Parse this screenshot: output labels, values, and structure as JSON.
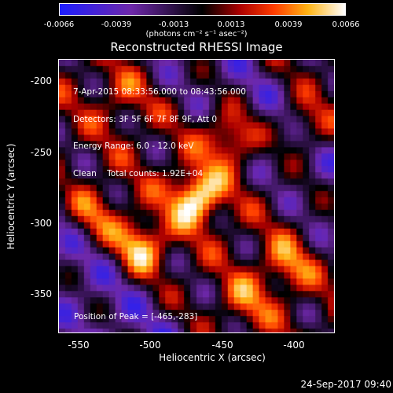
{
  "colorbar": {
    "ticks": [
      "-0.0066",
      "-0.0039",
      "-0.0013",
      "0.0013",
      "0.0039",
      "0.0066"
    ],
    "units": "(photons cm⁻² s⁻¹ asec⁻²)"
  },
  "chart_data": {
    "type": "heatmap",
    "title": "Reconstructed RHESSI Image",
    "xlabel": "Heliocentric X (arcsec)",
    "ylabel": "Heliocentric Y (arcsec)",
    "xlim": [
      -565,
      -365
    ],
    "ylim": [
      -375,
      -190
    ],
    "xticks": [
      "-550",
      "-500",
      "-450",
      "-400"
    ],
    "yticks": [
      "-200",
      "-250",
      "-300",
      "-350"
    ],
    "zlim": [
      -0.0066,
      0.0066
    ],
    "annotations": [
      "7-Apr-2015 08:33:56.000 to 08:43:56.000",
      "Detectors: 3F 5F 6F 7F 8F 9F, Att 0",
      "Energy Range: 6.0 - 12.0 keV",
      "Clean    Total counts: 1.92E+04"
    ],
    "peak_label": "Position of Peak = [-465,-283]",
    "peak": [
      -465,
      -283
    ],
    "sources": [
      {
        "x": -465,
        "y": -283,
        "amplitude": 1.0
      },
      {
        "x": -505,
        "y": -316,
        "amplitude": 0.78
      },
      {
        "x": -440,
        "y": -243,
        "amplitude": 0.75
      },
      {
        "x": -400,
        "y": -330,
        "amplitude": 0.5
      },
      {
        "x": -385,
        "y": -235,
        "amplitude": 0.5
      },
      {
        "x": -540,
        "y": -295,
        "amplitude": 0.45
      },
      {
        "x": -520,
        "y": -215,
        "amplitude": 0.3
      },
      {
        "x": -430,
        "y": -355,
        "amplitude": 0.4
      }
    ]
  },
  "footer": {
    "date": "24-Sep-2017 09:40"
  }
}
